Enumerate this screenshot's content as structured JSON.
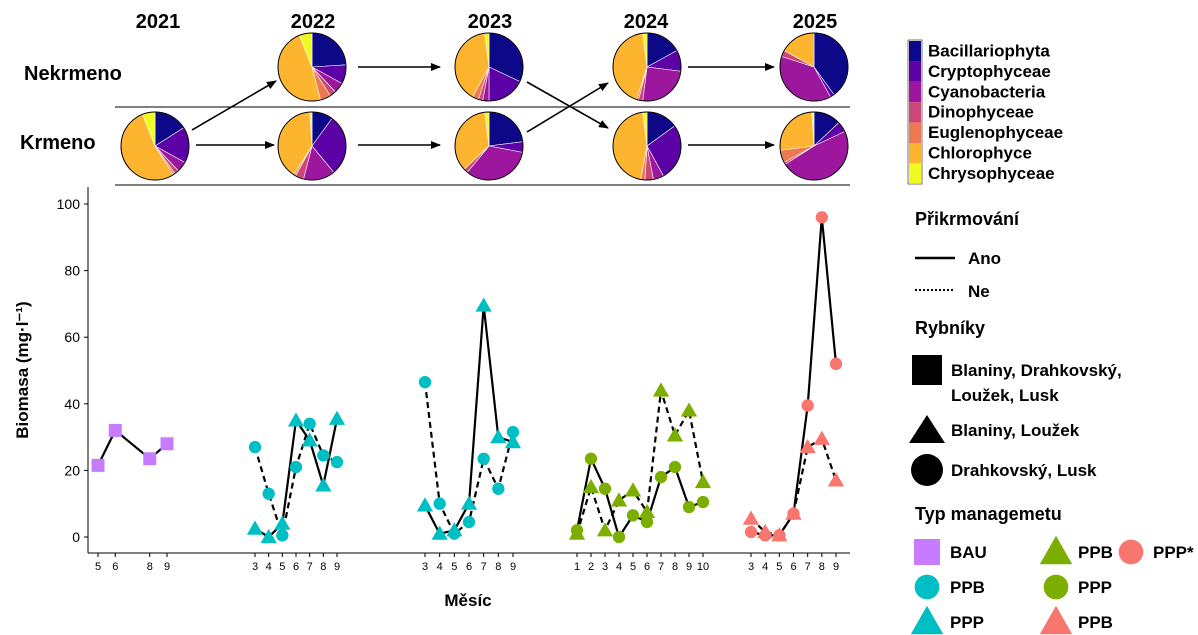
{
  "colors": {
    "Bacillariophyta": "#0d0887",
    "Cryptophyceae": "#5c01a6",
    "Cyanobacteria": "#9c179e",
    "Dinophyceae": "#cc4778",
    "Euglenophyceae": "#ed7953",
    "Chlorophyce": "#fdb42f",
    "Chrysophyceae": "#f0f921",
    "BAU": "#c77cff",
    "cyan": "#00bfc4",
    "green": "#7cae00",
    "salmon": "#f8766d"
  },
  "top_panel": {
    "years": [
      "2021",
      "2022",
      "2023",
      "2024",
      "2025"
    ],
    "row_labels": [
      "Nekrmeno",
      "Krmeno"
    ],
    "legend": [
      "Bacillariophyta",
      "Cryptophyceae",
      "Cyanobacteria",
      "Dinophyceae",
      "Euglenophyceae",
      "Chlorophyce",
      "Chrysophyceae"
    ],
    "pies": [
      {
        "year": "2021",
        "row": "Krmeno",
        "shares": [
          0.16,
          0.17,
          0.05,
          0.02,
          0.01,
          0.53,
          0.06
        ]
      },
      {
        "year": "2022",
        "row": "Nekrmeno",
        "shares": [
          0.24,
          0.09,
          0.05,
          0.03,
          0.05,
          0.48,
          0.06
        ]
      },
      {
        "year": "2022",
        "row": "Krmeno",
        "shares": [
          0.1,
          0.29,
          0.15,
          0.04,
          0.01,
          0.4,
          0.01
        ]
      },
      {
        "year": "2023",
        "row": "Nekrmeno",
        "shares": [
          0.32,
          0.18,
          0.03,
          0.02,
          0.03,
          0.4,
          0.02
        ]
      },
      {
        "year": "2023",
        "row": "Krmeno",
        "shares": [
          0.23,
          0.05,
          0.33,
          0.02,
          0.0,
          0.35,
          0.02
        ]
      },
      {
        "year": "2024",
        "row": "Nekrmeno",
        "shares": [
          0.17,
          0.1,
          0.25,
          0.02,
          0.01,
          0.43,
          0.02
        ]
      },
      {
        "year": "2024",
        "row": "Krmeno",
        "shares": [
          0.15,
          0.27,
          0.05,
          0.04,
          0.02,
          0.45,
          0.02
        ]
      },
      {
        "year": "2025",
        "row": "Nekrmeno",
        "shares": [
          0.4,
          0.02,
          0.38,
          0.03,
          0.0,
          0.17,
          0.0
        ]
      },
      {
        "year": "2025",
        "row": "Krmeno",
        "shares": [
          0.13,
          0.05,
          0.48,
          0.01,
          0.06,
          0.26,
          0.01
        ]
      }
    ]
  },
  "chart_data": {
    "type": "line",
    "ylabel": "Biomasa (mg·l⁻¹)",
    "xlabel": "Měsíc",
    "ylim": [
      0,
      100
    ],
    "yticks": [
      0,
      20,
      40,
      60,
      80,
      100
    ],
    "xticks": [
      {
        "year": "2021",
        "labels": [
          "5",
          "6",
          "8",
          "9"
        ]
      },
      {
        "year": "2022",
        "labels": [
          "3",
          "4",
          "5",
          "6",
          "7",
          "8",
          "9"
        ]
      },
      {
        "year": "2023",
        "labels": [
          "3",
          "4",
          "5",
          "6",
          "7",
          "8",
          "9"
        ]
      },
      {
        "year": "2024",
        "labels": [
          "1",
          "2",
          "3",
          "4",
          "5",
          "6",
          "7",
          "8",
          "9",
          "10"
        ]
      },
      {
        "year": "2025",
        "labels": [
          "3",
          "4",
          "5",
          "6",
          "7",
          "8",
          "9"
        ]
      }
    ],
    "series": [
      {
        "year": "2021",
        "shape": "square",
        "color": "#c77cff",
        "dash": "solid",
        "x": [
          5,
          6,
          8,
          9
        ],
        "y": [
          21.5,
          32,
          23.5,
          28
        ]
      },
      {
        "year": "2022",
        "shape": "circle",
        "color": "#00bfc4",
        "dash": "dashed",
        "x": [
          3,
          4,
          5,
          6,
          7,
          8,
          9
        ],
        "y": [
          27,
          13,
          0.5,
          21,
          34,
          24.5,
          22.5
        ]
      },
      {
        "year": "2022",
        "shape": "triangle",
        "color": "#00bfc4",
        "dash": "solid",
        "x": [
          3,
          4,
          5,
          6,
          7,
          8,
          9
        ],
        "y": [
          2.5,
          0,
          4,
          35,
          29,
          15.5,
          35.5
        ]
      },
      {
        "year": "2023",
        "shape": "circle",
        "color": "#00bfc4",
        "dash": "dashed",
        "x": [
          3,
          4,
          5,
          6,
          7,
          8,
          9
        ],
        "y": [
          46.5,
          10,
          1,
          4.5,
          23.5,
          14.5,
          31.5
        ]
      },
      {
        "year": "2023",
        "shape": "triangle",
        "color": "#00bfc4",
        "dash": "solid",
        "x": [
          3,
          4,
          5,
          6,
          7,
          8,
          9
        ],
        "y": [
          9.5,
          1,
          2,
          10,
          69.5,
          30,
          28.5
        ]
      },
      {
        "year": "2024",
        "shape": "circle",
        "color": "#7cae00",
        "dash": "solid",
        "x": [
          1,
          2,
          3,
          4,
          5,
          6,
          7,
          8,
          9,
          10
        ],
        "y": [
          2,
          23.5,
          14.5,
          0,
          6.5,
          4.5,
          18,
          21,
          9,
          10.5
        ]
      },
      {
        "year": "2024",
        "shape": "triangle",
        "color": "#7cae00",
        "dash": "dashed",
        "x": [
          1,
          2,
          3,
          4,
          5,
          6,
          7,
          8,
          9,
          10
        ],
        "y": [
          1,
          15,
          2,
          11,
          14,
          7.5,
          44,
          30.5,
          38,
          16.5
        ]
      },
      {
        "year": "2025",
        "shape": "circle",
        "color": "#f8766d",
        "dash": "solid",
        "x": [
          3,
          4,
          5,
          6,
          7,
          8,
          9
        ],
        "y": [
          1.5,
          0.5,
          0.5,
          7,
          39.5,
          96,
          52
        ]
      },
      {
        "year": "2025",
        "shape": "triangle",
        "color": "#f8766d",
        "dash": "dashed",
        "x": [
          3,
          4,
          5,
          6,
          7,
          8,
          9
        ],
        "y": [
          5.5,
          1.5,
          0.5,
          7,
          27,
          29.5,
          17
        ]
      }
    ]
  },
  "right_legend": {
    "prikrmovani_title": "Přikrmování",
    "ano": "Ano",
    "ne": "Ne",
    "rybniky_title": "Rybníky",
    "ponds_square": [
      "Blaniny, Drahkovský,",
      "Loužek, Lusk"
    ],
    "ponds_triangle": "Blaniny, Loužek",
    "ponds_circle": "Drahkovský, Lusk",
    "typ_title": "Typ managemetu",
    "typ_items": [
      {
        "shape": "square",
        "color": "#c77cff",
        "label": "BAU"
      },
      {
        "shape": "triangle",
        "color": "#7cae00",
        "label": "PPB"
      },
      {
        "shape": "circle",
        "color": "#f8766d",
        "label": "PPP*"
      },
      {
        "shape": "circle",
        "color": "#00bfc4",
        "label": "PPB"
      },
      {
        "shape": "circle",
        "color": "#7cae00",
        "label": "PPP"
      },
      {
        "shape": "triangle",
        "color": "#00bfc4",
        "label": "PPP"
      },
      {
        "shape": "triangle",
        "color": "#f8766d",
        "label": "PPB"
      }
    ]
  }
}
